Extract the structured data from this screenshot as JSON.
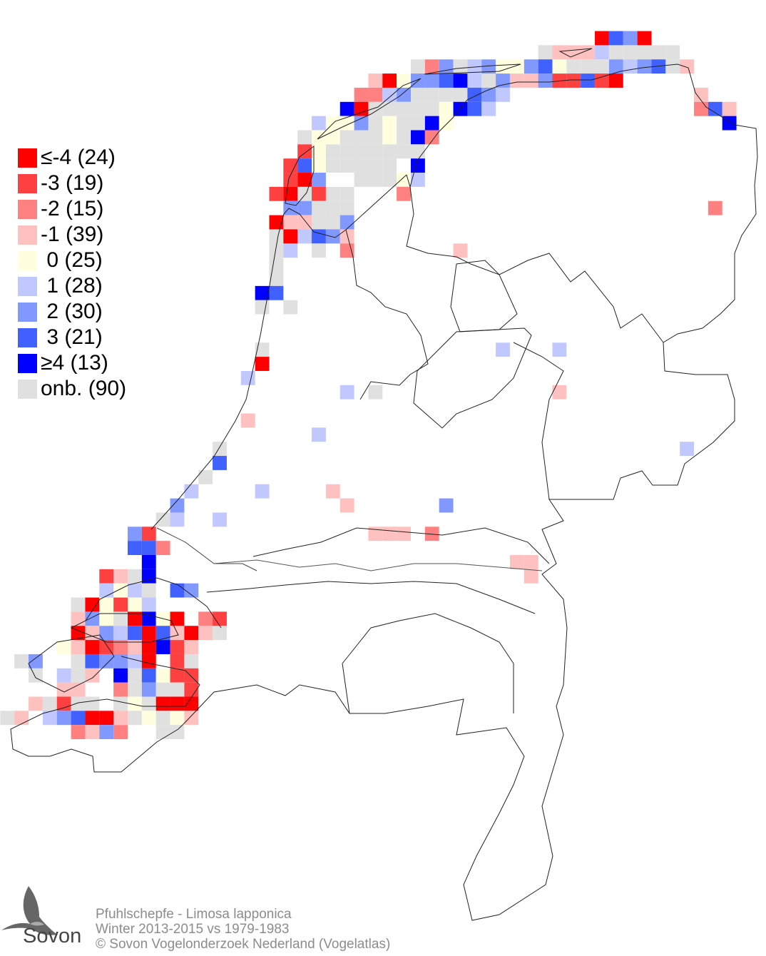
{
  "map": {
    "type": "grid-change-map",
    "categories": {
      "A": {
        "label": "≤-4 (24)",
        "color": "#ff0000"
      },
      "B": {
        "label": "-3 (19)",
        "color": "#ff4040"
      },
      "C": {
        "label": "-2 (15)",
        "color": "#ff8080"
      },
      "D": {
        "label": "-1 (39)",
        "color": "#ffc0c0"
      },
      "E": {
        "label": " 0 (25)",
        "color": "#ffffe0"
      },
      "F": {
        "label": " 1 (28)",
        "color": "#c0c8ff"
      },
      "G": {
        "label": " 2 (30)",
        "color": "#8098ff"
      },
      "H": {
        "label": " 3 (21)",
        "color": "#4060ff"
      },
      "I": {
        "label": "≥4 (13)",
        "color": "#0000ff"
      },
      "N": {
        "label": "onb. (90)",
        "color": "#e0e0e0"
      }
    },
    "grid": [
      "",
      "",
      "..........................................AHGA",
      "......................................NDDDFNNNNN",
      ".............................NCGNFGEEGHENNNGFGHND",
      "..........................DAEGGHIFNGDDGBBHBA",
      ".........................CCFGNNNNHGF.............D",
      "........................IANNNNNEIHF..............CHD",
      "......................FEEGNENNIE...................I",
      ".....................NEENNNENIC",
      ".....................BENNNNNNN",
      "....................BHENNNNN.I",
      "....................BAG..NNNEF",
      "...................BANBNN...C",
      "....................GGNNN.........................C",
      "...................ADDNNG",
      "...................NAFHGD",
      "...................NF.N.C.......D",
      "...................N",
      "...................N",
      "..................IH",
      "..................N.N",
      "",
      "",
      "..................N................F...F",
      "..................A",
      ".................F",
      "........................F.N............D",
      "",
      ".................D",
      "......................F",
      "...............N................................F",
      "...............H",
      "..............N",
      ".............F....F....D",
      "............G...........D......G",
      "...........NF..F",
      ".........GB...............DDD.C",
      ".........HHC",
      "..........I.........................DD",
      ".......BDNI..........................D",
      ".......FEFN.HG",
      ".....NAEBEF",
      ".....DGENAIEA.CB",
      ".....ADGFHAHDADN",
      "....EDABCDAIBD",
      ".NG..NHGGFA.BN",
      "..N.FND.INHEBB",
      "....DD..CNGNNB",
      "..DNBNN.NENAAA",
      "ND.FGHAADNENED",
      ".....CDGC..NN"
    ]
  },
  "legend": {
    "order": [
      "A",
      "B",
      "C",
      "D",
      "E",
      "F",
      "G",
      "H",
      "I",
      "N"
    ],
    "items": [
      {
        "label": "≤-4 (24)",
        "color": "#ff0000"
      },
      {
        "label": "-3 (19)",
        "color": "#ff4040"
      },
      {
        "label": "-2 (15)",
        "color": "#ff8080"
      },
      {
        "label": "-1 (39)",
        "color": "#ffc0c0"
      },
      {
        "label": " 0 (25)",
        "color": "#ffffe0"
      },
      {
        "label": " 1 (28)",
        "color": "#c0c8ff"
      },
      {
        "label": " 2 (30)",
        "color": "#8098ff"
      },
      {
        "label": " 3 (21)",
        "color": "#4060ff"
      },
      {
        "label": "≥4 (13)",
        "color": "#0000ff"
      },
      {
        "label": "onb. (90)",
        "color": "#e0e0e0"
      }
    ]
  },
  "footer": {
    "species": "Pfuhlschepfe - Limosa lapponica",
    "period": "Winter 2013-2015 vs 1979-1983",
    "copyright": "© Sovon Vogelonderzoek Nederland (Vogelatlas)"
  },
  "logo": {
    "text": "Sovon",
    "icon": "swallow-icon"
  }
}
